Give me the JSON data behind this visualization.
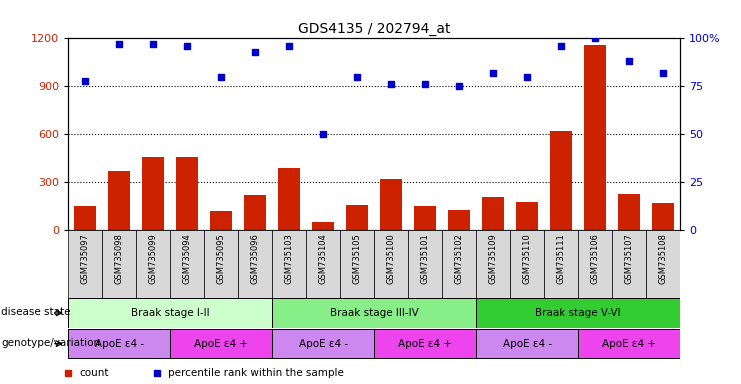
{
  "title": "GDS4135 / 202794_at",
  "samples": [
    "GSM735097",
    "GSM735098",
    "GSM735099",
    "GSM735094",
    "GSM735095",
    "GSM735096",
    "GSM735103",
    "GSM735104",
    "GSM735105",
    "GSM735100",
    "GSM735101",
    "GSM735102",
    "GSM735109",
    "GSM735110",
    "GSM735111",
    "GSM735106",
    "GSM735107",
    "GSM735108"
  ],
  "counts": [
    150,
    370,
    460,
    460,
    120,
    220,
    390,
    50,
    160,
    320,
    150,
    130,
    210,
    180,
    620,
    1160,
    230,
    170
  ],
  "percentiles": [
    78,
    97,
    97,
    96,
    80,
    93,
    96,
    50,
    80,
    76,
    76,
    75,
    82,
    80,
    96,
    100,
    88,
    82
  ],
  "ylim_left": [
    0,
    1200
  ],
  "ylim_right": [
    0,
    100
  ],
  "yticks_left": [
    0,
    300,
    600,
    900,
    1200
  ],
  "yticks_right": [
    0,
    25,
    50,
    75,
    100
  ],
  "bar_color": "#cc2200",
  "dot_color": "#0000cc",
  "disease_states": [
    {
      "label": "Braak stage I-II",
      "start": 0,
      "end": 6,
      "color": "#ccffcc"
    },
    {
      "label": "Braak stage III-IV",
      "start": 6,
      "end": 12,
      "color": "#88ee88"
    },
    {
      "label": "Braak stage V-VI",
      "start": 12,
      "end": 18,
      "color": "#33cc33"
    }
  ],
  "genotypes": [
    {
      "label": "ApoE ε4 -",
      "start": 0,
      "end": 3,
      "color": "#cc88ee"
    },
    {
      "label": "ApoE ε4 +",
      "start": 3,
      "end": 6,
      "color": "#ee44ee"
    },
    {
      "label": "ApoE ε4 -",
      "start": 6,
      "end": 9,
      "color": "#cc88ee"
    },
    {
      "label": "ApoE ε4 +",
      "start": 9,
      "end": 12,
      "color": "#ee44ee"
    },
    {
      "label": "ApoE ε4 -",
      "start": 12,
      "end": 15,
      "color": "#cc88ee"
    },
    {
      "label": "ApoE ε4 +",
      "start": 15,
      "end": 18,
      "color": "#ee44ee"
    }
  ],
  "xtick_bg": "#d8d8d8",
  "label_disease": "disease state",
  "label_genotype": "genotype/variation"
}
